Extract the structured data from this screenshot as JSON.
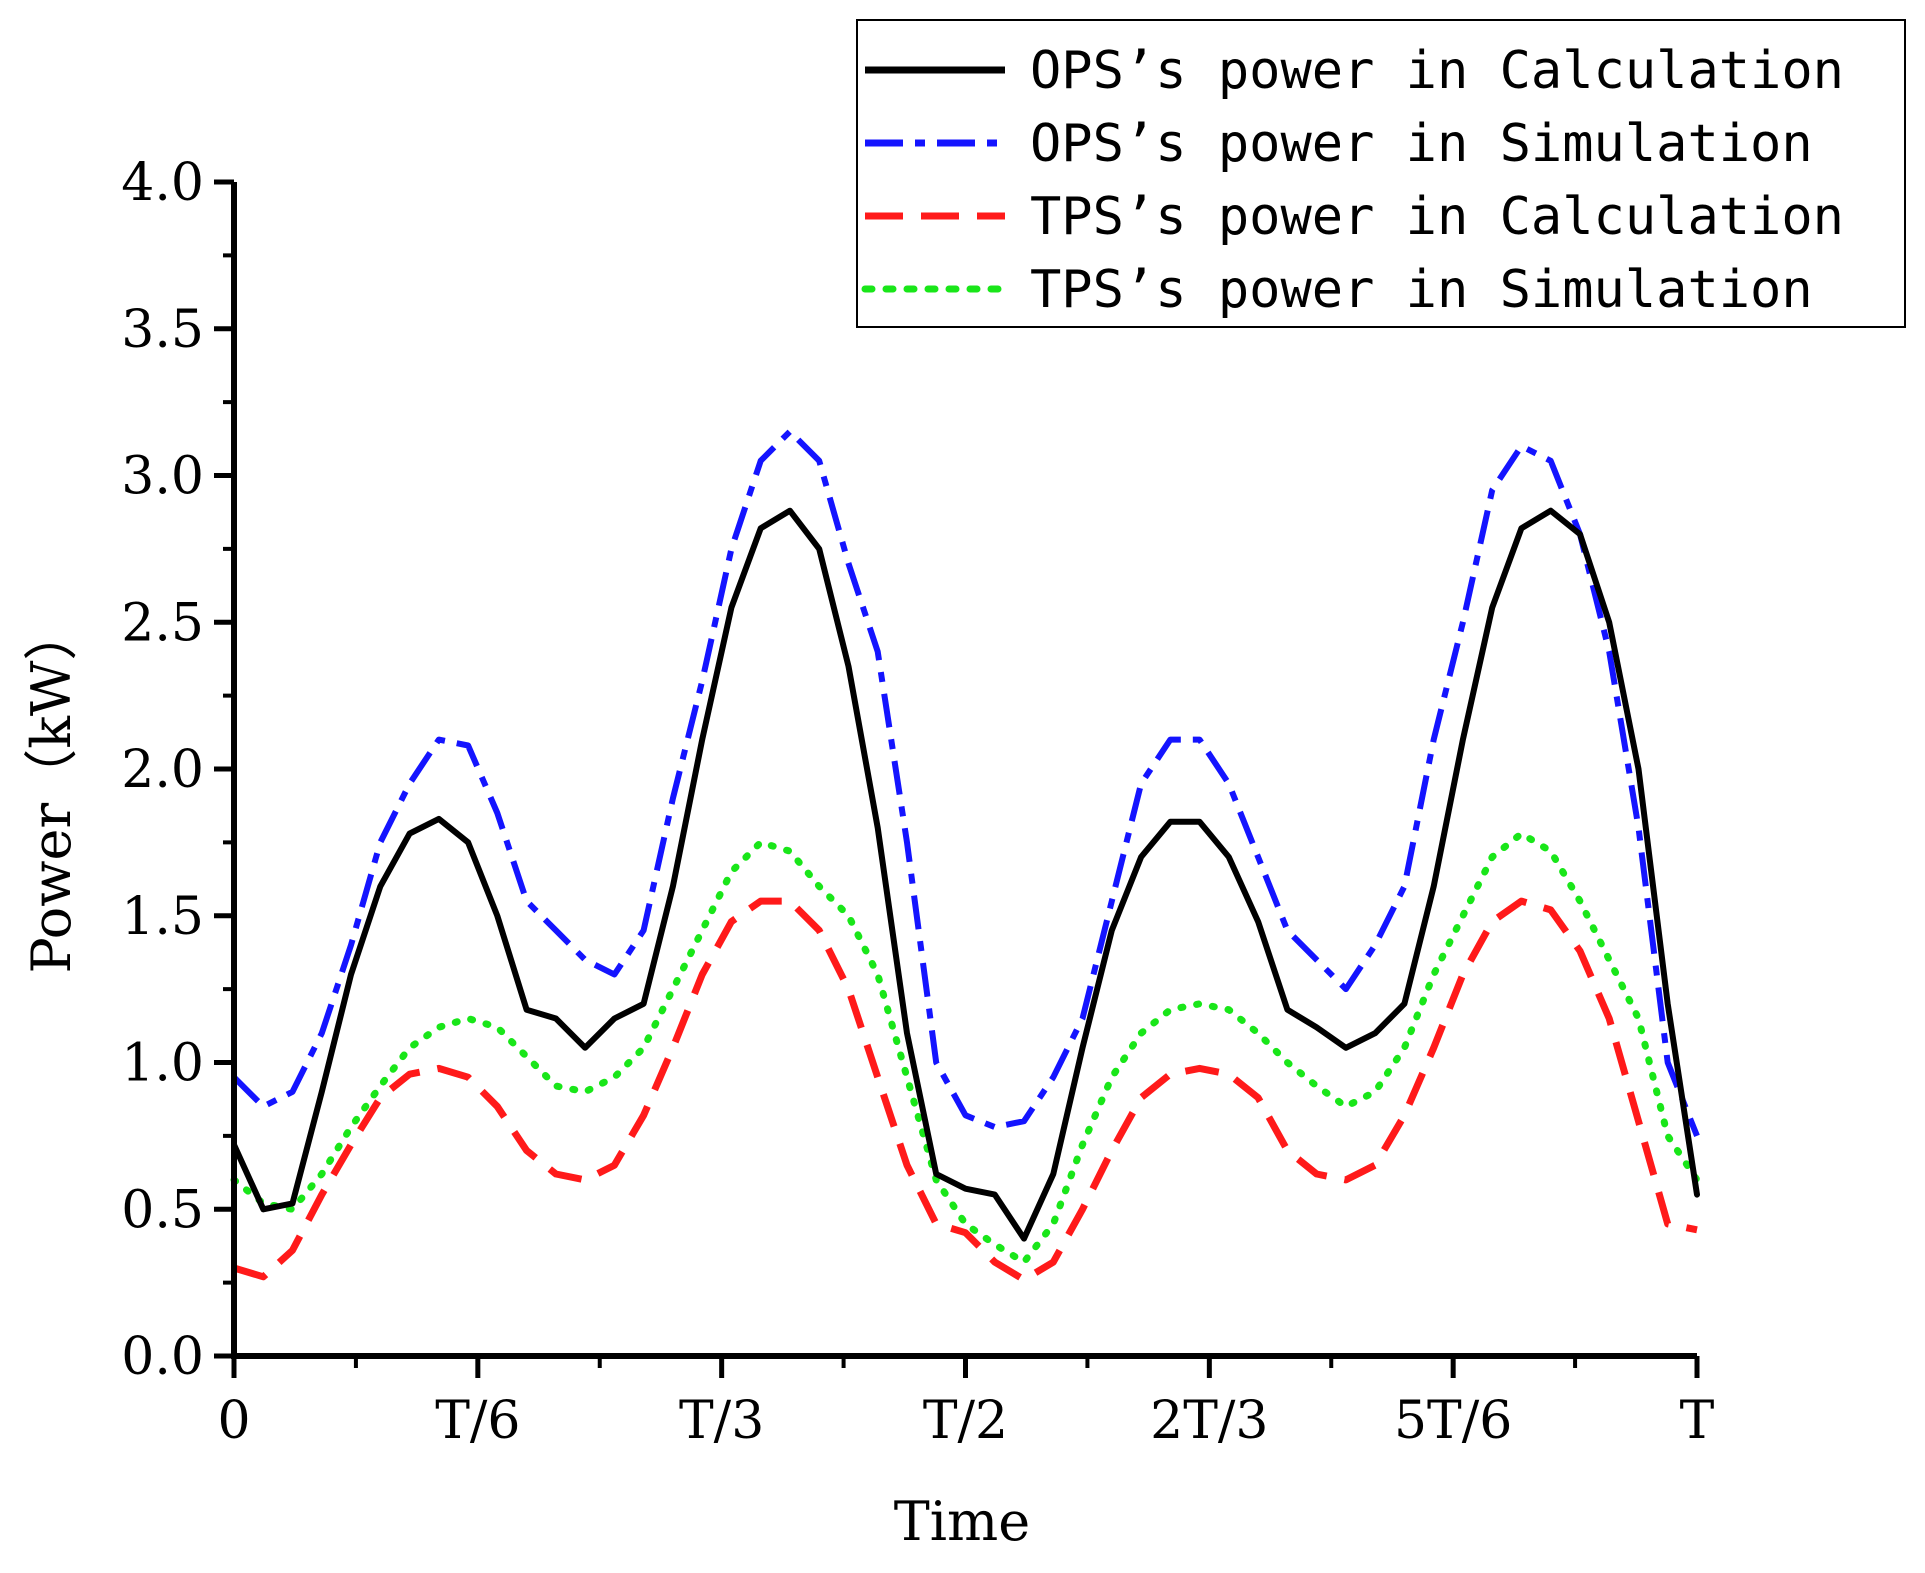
{
  "chart_data": {
    "type": "line",
    "title": "",
    "xlabel": "Time",
    "ylabel": "Power（kW）",
    "xlim": [
      0,
      1
    ],
    "ylim": [
      0,
      4
    ],
    "x_ticks": [
      {
        "value": 0,
        "label": "0"
      },
      {
        "value": 0.16667,
        "label": "T/6"
      },
      {
        "value": 0.33333,
        "label": "T/3"
      },
      {
        "value": 0.5,
        "label": "T/2"
      },
      {
        "value": 0.66667,
        "label": "2T/3"
      },
      {
        "value": 0.83333,
        "label": "5T/6"
      },
      {
        "value": 1,
        "label": "T"
      }
    ],
    "y_ticks": [
      {
        "value": 0.0,
        "label": "0.0"
      },
      {
        "value": 0.5,
        "label": "0.5"
      },
      {
        "value": 1.0,
        "label": "1.0"
      },
      {
        "value": 1.5,
        "label": "1.5"
      },
      {
        "value": 2.0,
        "label": "2.0"
      },
      {
        "value": 2.5,
        "label": "2.5"
      },
      {
        "value": 3.0,
        "label": "3.0"
      },
      {
        "value": 3.5,
        "label": "3.5"
      },
      {
        "value": 4.0,
        "label": "4.0"
      }
    ],
    "legend_position": "top-right",
    "series": [
      {
        "name": "OPS’s power in Calculation",
        "color": "#000000",
        "style": "solid",
        "x": [
          0,
          0.02,
          0.04,
          0.06,
          0.08,
          0.1,
          0.12,
          0.14,
          0.16,
          0.18,
          0.2,
          0.22,
          0.24,
          0.26,
          0.28,
          0.3,
          0.32,
          0.34,
          0.36,
          0.38,
          0.4,
          0.42,
          0.44,
          0.46,
          0.48,
          0.5,
          0.52,
          0.54,
          0.56,
          0.58,
          0.6,
          0.62,
          0.64,
          0.66,
          0.68,
          0.7,
          0.72,
          0.74,
          0.76,
          0.78,
          0.8,
          0.82,
          0.84,
          0.86,
          0.88,
          0.9,
          0.92,
          0.94,
          0.96,
          0.98,
          1.0
        ],
        "y": [
          0.72,
          0.5,
          0.52,
          0.9,
          1.3,
          1.6,
          1.78,
          1.83,
          1.75,
          1.5,
          1.18,
          1.15,
          1.05,
          1.15,
          1.2,
          1.6,
          2.1,
          2.55,
          2.82,
          2.88,
          2.75,
          2.35,
          1.8,
          1.1,
          0.62,
          0.57,
          0.55,
          0.4,
          0.62,
          1.05,
          1.45,
          1.7,
          1.82,
          1.82,
          1.7,
          1.48,
          1.18,
          1.12,
          1.05,
          1.1,
          1.2,
          1.6,
          2.1,
          2.55,
          2.82,
          2.88,
          2.8,
          2.5,
          2.0,
          1.2,
          0.55
        ]
      },
      {
        "name": "OPS’s power in Simulation",
        "color": "#1414ff",
        "style": "dashdot",
        "x": [
          0,
          0.02,
          0.04,
          0.06,
          0.08,
          0.1,
          0.12,
          0.14,
          0.16,
          0.18,
          0.2,
          0.22,
          0.24,
          0.26,
          0.28,
          0.3,
          0.32,
          0.34,
          0.36,
          0.38,
          0.4,
          0.42,
          0.44,
          0.46,
          0.48,
          0.5,
          0.52,
          0.54,
          0.56,
          0.58,
          0.6,
          0.62,
          0.64,
          0.66,
          0.68,
          0.7,
          0.72,
          0.74,
          0.76,
          0.78,
          0.8,
          0.82,
          0.84,
          0.86,
          0.88,
          0.9,
          0.92,
          0.94,
          0.96,
          0.98,
          1.0
        ],
        "y": [
          0.95,
          0.85,
          0.9,
          1.1,
          1.4,
          1.75,
          1.95,
          2.1,
          2.08,
          1.85,
          1.55,
          1.45,
          1.35,
          1.3,
          1.45,
          1.9,
          2.3,
          2.75,
          3.05,
          3.15,
          3.05,
          2.7,
          2.4,
          1.75,
          1.0,
          0.82,
          0.78,
          0.8,
          0.95,
          1.15,
          1.55,
          1.95,
          2.1,
          2.1,
          1.95,
          1.7,
          1.45,
          1.35,
          1.25,
          1.4,
          1.6,
          2.1,
          2.5,
          2.95,
          3.1,
          3.05,
          2.8,
          2.4,
          1.8,
          1.0,
          0.75
        ]
      },
      {
        "name": "TPS’s power in Calculation",
        "color": "#ff1a1a",
        "style": "dashed",
        "x": [
          0,
          0.02,
          0.04,
          0.06,
          0.08,
          0.1,
          0.12,
          0.14,
          0.16,
          0.18,
          0.2,
          0.22,
          0.24,
          0.26,
          0.28,
          0.3,
          0.32,
          0.34,
          0.36,
          0.38,
          0.4,
          0.42,
          0.44,
          0.46,
          0.48,
          0.5,
          0.52,
          0.54,
          0.56,
          0.58,
          0.6,
          0.62,
          0.64,
          0.66,
          0.68,
          0.7,
          0.72,
          0.74,
          0.76,
          0.78,
          0.8,
          0.82,
          0.84,
          0.86,
          0.88,
          0.9,
          0.92,
          0.94,
          0.96,
          0.98,
          1.0
        ],
        "y": [
          0.3,
          0.27,
          0.36,
          0.55,
          0.72,
          0.88,
          0.96,
          0.98,
          0.95,
          0.85,
          0.7,
          0.62,
          0.6,
          0.65,
          0.82,
          1.05,
          1.3,
          1.48,
          1.55,
          1.55,
          1.45,
          1.25,
          0.95,
          0.65,
          0.45,
          0.42,
          0.32,
          0.26,
          0.32,
          0.5,
          0.7,
          0.88,
          0.96,
          0.98,
          0.96,
          0.88,
          0.7,
          0.62,
          0.6,
          0.65,
          0.82,
          1.05,
          1.3,
          1.48,
          1.55,
          1.52,
          1.38,
          1.15,
          0.8,
          0.45,
          0.43
        ]
      },
      {
        "name": "TPS’s power in Simulation",
        "color": "#19e619",
        "style": "dotted",
        "x": [
          0,
          0.02,
          0.04,
          0.06,
          0.08,
          0.1,
          0.12,
          0.14,
          0.16,
          0.18,
          0.2,
          0.22,
          0.24,
          0.26,
          0.28,
          0.3,
          0.32,
          0.34,
          0.36,
          0.38,
          0.4,
          0.42,
          0.44,
          0.46,
          0.48,
          0.5,
          0.52,
          0.54,
          0.56,
          0.58,
          0.6,
          0.62,
          0.64,
          0.66,
          0.68,
          0.7,
          0.72,
          0.74,
          0.76,
          0.78,
          0.8,
          0.82,
          0.84,
          0.86,
          0.88,
          0.9,
          0.92,
          0.94,
          0.96,
          0.98,
          1.0
        ],
        "y": [
          0.6,
          0.52,
          0.5,
          0.62,
          0.78,
          0.92,
          1.05,
          1.12,
          1.15,
          1.12,
          1.02,
          0.92,
          0.9,
          0.95,
          1.05,
          1.25,
          1.45,
          1.65,
          1.75,
          1.72,
          1.6,
          1.5,
          1.3,
          0.95,
          0.6,
          0.45,
          0.38,
          0.32,
          0.45,
          0.72,
          0.95,
          1.1,
          1.18,
          1.2,
          1.18,
          1.1,
          1.0,
          0.92,
          0.85,
          0.9,
          1.05,
          1.3,
          1.5,
          1.7,
          1.78,
          1.72,
          1.55,
          1.35,
          1.15,
          0.75,
          0.6
        ]
      }
    ]
  }
}
